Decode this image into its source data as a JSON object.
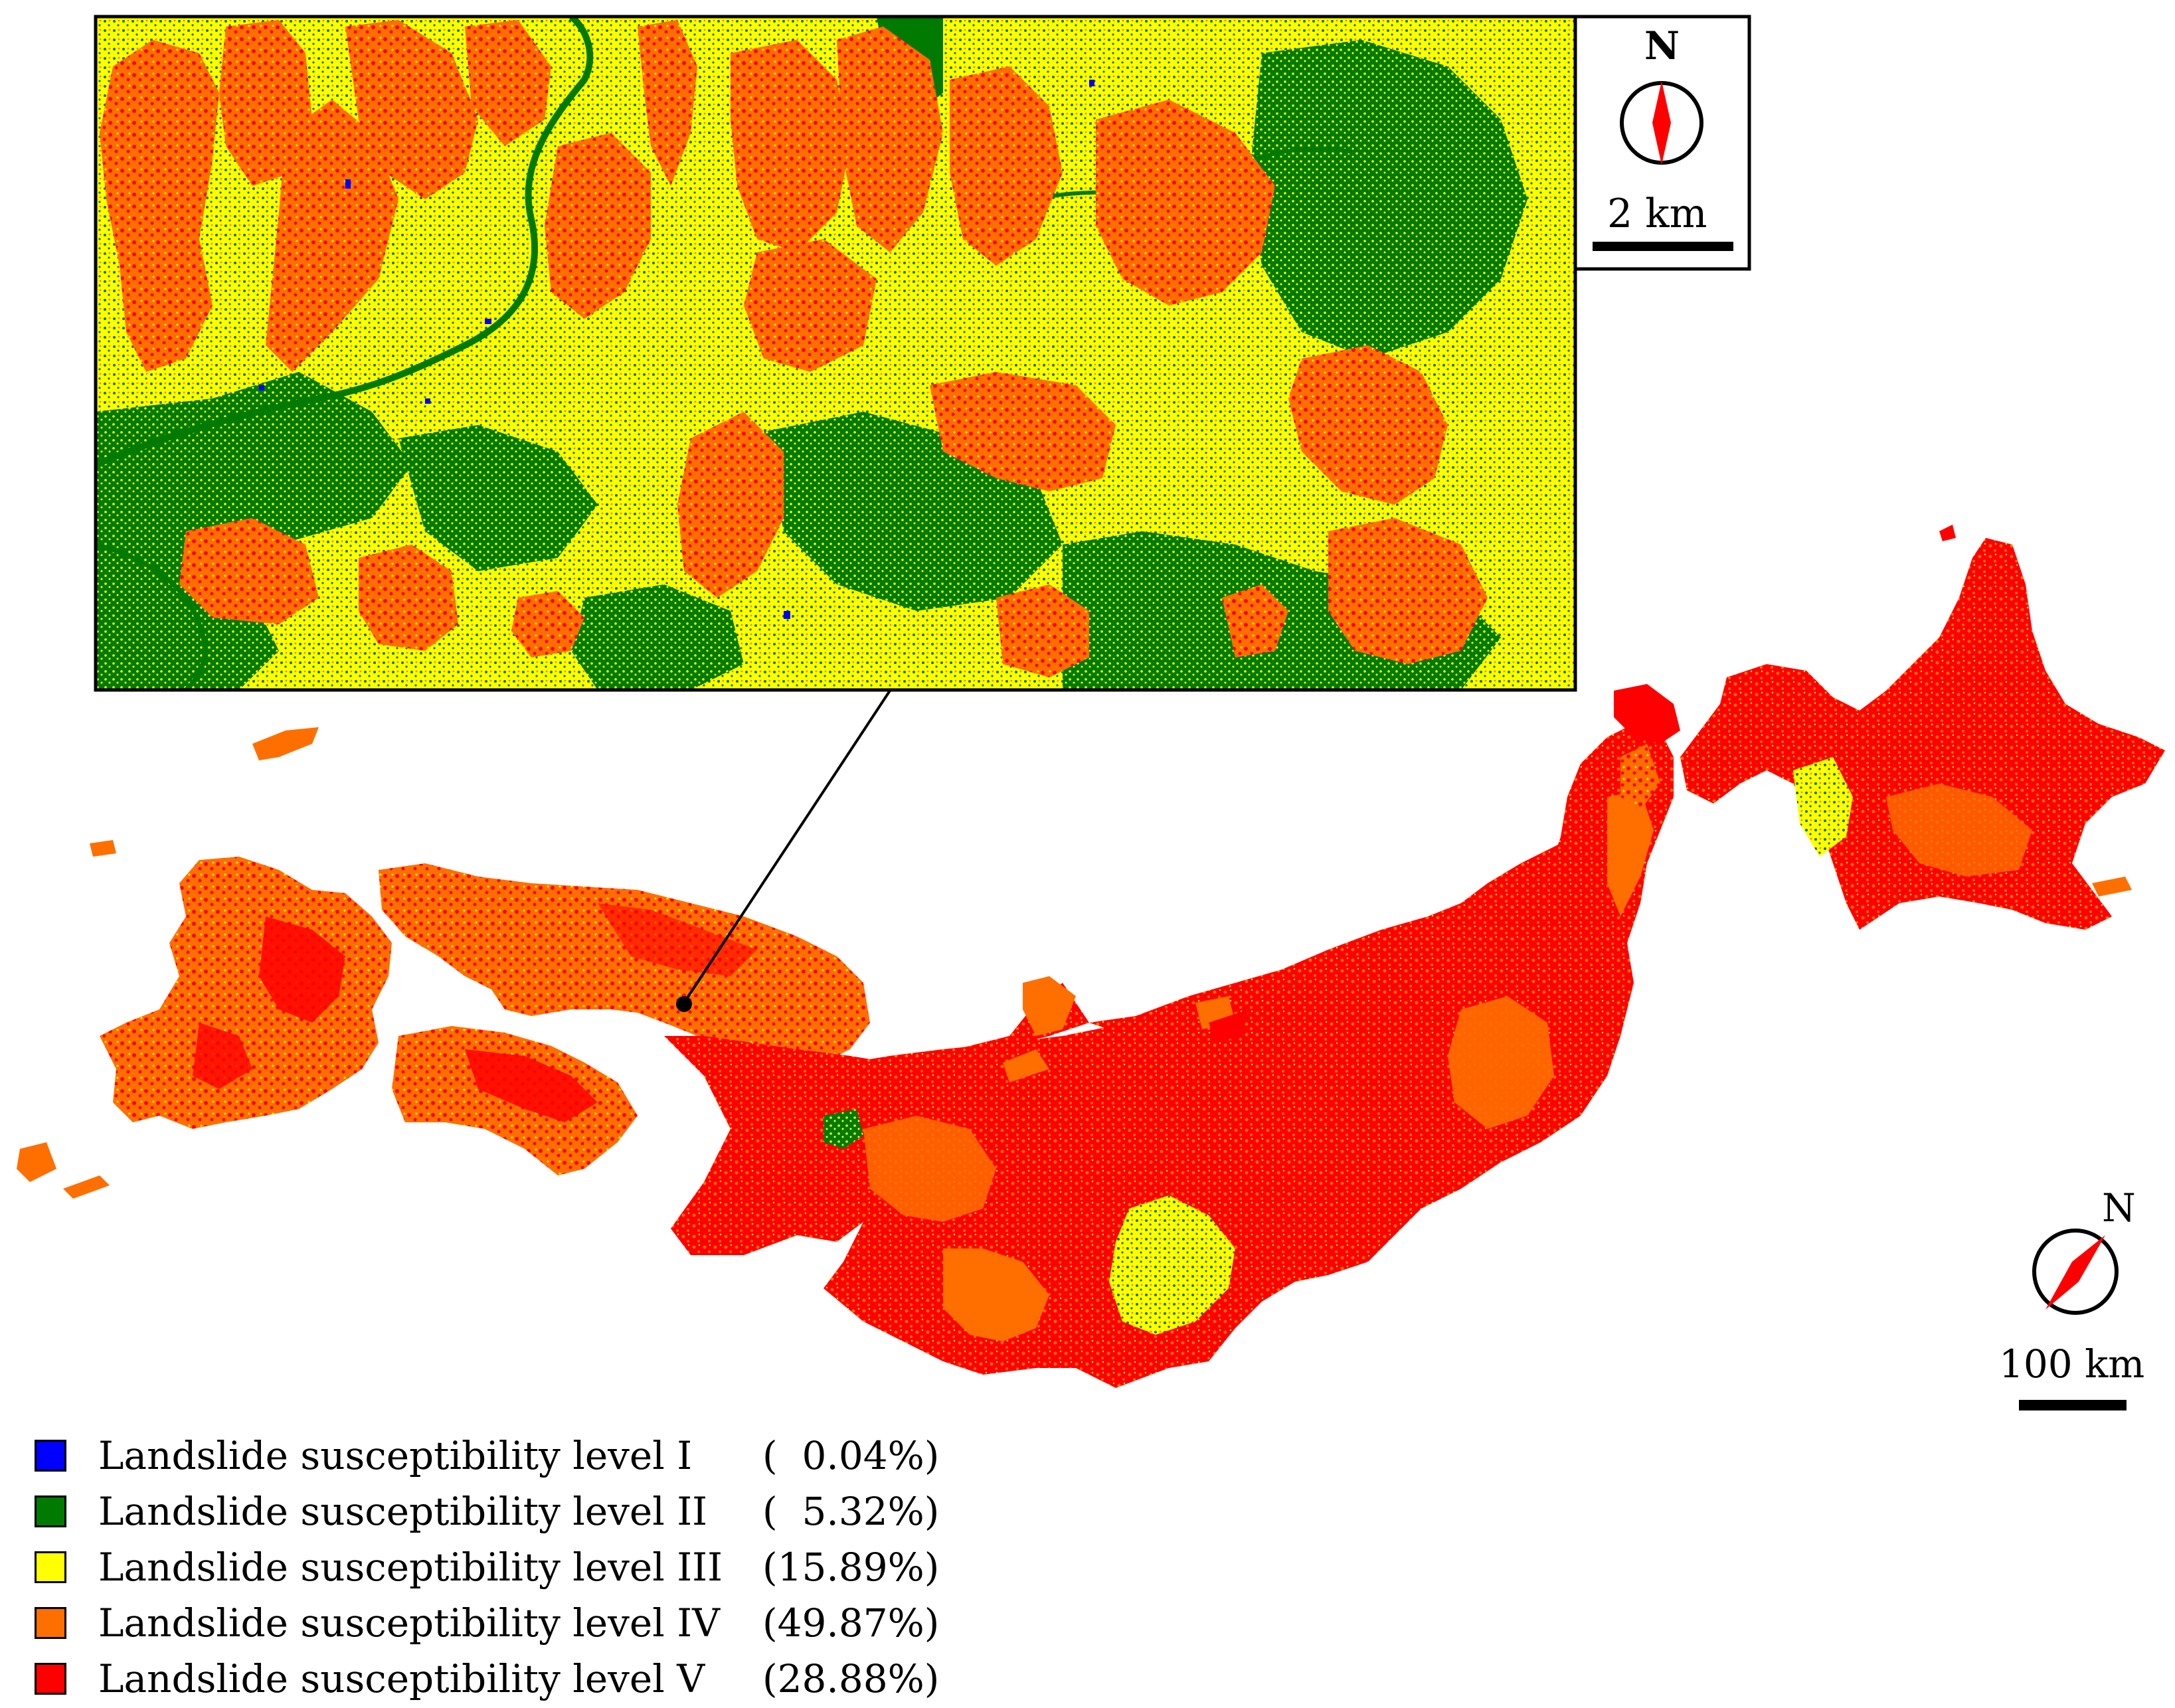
{
  "inset": {
    "north_label": "N",
    "scale_label": "2 km"
  },
  "main_map": {
    "north_label": "N",
    "scale_label": "100 km"
  },
  "legend": {
    "items": [
      {
        "label": "Landslide susceptibility level I",
        "percent": "(  0.04%)",
        "color": "#0000ff"
      },
      {
        "label": "Landslide susceptibility level II",
        "percent": "(  5.32%)",
        "color": "#007a00"
      },
      {
        "label": "Landslide susceptibility level III",
        "percent": "(15.89%)",
        "color": "#ffff00"
      },
      {
        "label": "Landslide susceptibility level IV",
        "percent": "(49.87%)",
        "color": "#ff6f00"
      },
      {
        "label": "Landslide susceptibility level V",
        "percent": "(28.88%)",
        "color": "#ff0000"
      }
    ]
  },
  "colors": {
    "level_I": "#0000ff",
    "level_II": "#007a00",
    "level_III": "#ffff00",
    "level_IV": "#ff6f00",
    "level_V": "#ff0000",
    "compass_needle": "#ff0000"
  }
}
